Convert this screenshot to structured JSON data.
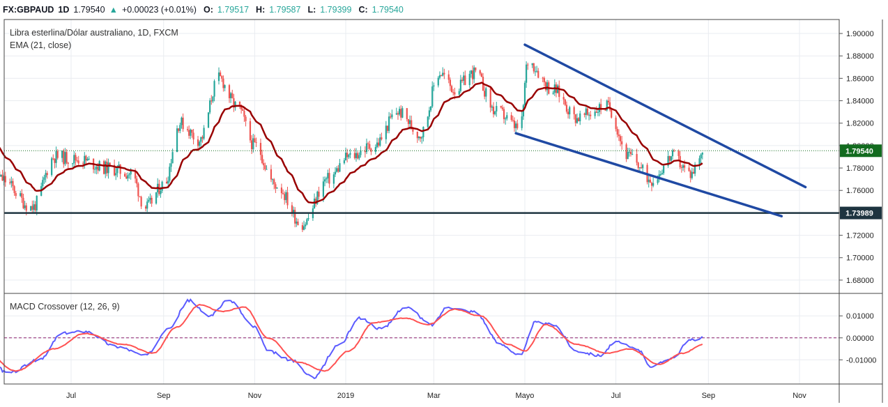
{
  "header": {
    "symbol": "FX:GBPAUD",
    "interval": "1D",
    "last": "1.79540",
    "change": "+0.00023 (+0.01%)",
    "o_label": "O:",
    "o": "1.79517",
    "h_label": "H:",
    "h": "1.79587",
    "l_label": "L:",
    "l": "1.79399",
    "c_label": "C:",
    "c": "1.79540",
    "up_arrow_icon": "triangle-up-icon"
  },
  "colors": {
    "up": "#26a69a",
    "down": "#ef5350",
    "ema": "#990000",
    "trendline": "#1f49a3",
    "support": "#1e3440",
    "macd": "#5b5bff",
    "signal": "#ff5252",
    "last_badge": "#126b1f"
  },
  "chart_data": [
    {
      "type": "candlestick",
      "title": "Libra esterlina/Dólar australiano, 1D, FXCM",
      "indicator_label": "EMA (21, close)",
      "x_tick_labels": [
        "Jul",
        "Sep",
        "Nov",
        "2019",
        "Mar",
        "Mayo",
        "Jul",
        "Sep",
        "Nov"
      ],
      "y_tick_labels": [
        "1.90000",
        "1.88000",
        "1.86000",
        "1.84000",
        "1.82000",
        "1.80000",
        "1.78000",
        "1.76000",
        "1.74000",
        "1.72000",
        "1.70000",
        "1.68000"
      ],
      "ylim": [
        1.67,
        1.905
      ],
      "x_start": "2018-05-01",
      "close_keypoints": [
        [
          "2018-05-01",
          1.81
        ],
        [
          "2018-05-15",
          1.77
        ],
        [
          "2018-06-05",
          1.745
        ],
        [
          "2018-06-20",
          1.79
        ],
        [
          "2018-07-05",
          1.788
        ],
        [
          "2018-07-25",
          1.78
        ],
        [
          "2018-08-10",
          1.775
        ],
        [
          "2018-08-20",
          1.745
        ],
        [
          "2018-09-01",
          1.765
        ],
        [
          "2018-09-12",
          1.82
        ],
        [
          "2018-09-25",
          1.805
        ],
        [
          "2018-10-08",
          1.86
        ],
        [
          "2018-10-20",
          1.835
        ],
        [
          "2018-11-01",
          1.8
        ],
        [
          "2018-11-15",
          1.765
        ],
        [
          "2018-12-03",
          1.73
        ],
        [
          "2018-12-20",
          1.77
        ],
        [
          "2019-01-03",
          1.79
        ],
        [
          "2019-01-20",
          1.8
        ],
        [
          "2019-02-05",
          1.83
        ],
        [
          "2019-02-20",
          1.81
        ],
        [
          "2019-03-05",
          1.865
        ],
        [
          "2019-03-15",
          1.85
        ],
        [
          "2019-03-28",
          1.865
        ],
        [
          "2019-04-12",
          1.83
        ],
        [
          "2019-04-28",
          1.815
        ],
        [
          "2019-05-03",
          1.875
        ],
        [
          "2019-05-20",
          1.85
        ],
        [
          "2019-06-05",
          1.825
        ],
        [
          "2019-06-25",
          1.835
        ],
        [
          "2019-07-10",
          1.79
        ],
        [
          "2019-07-25",
          1.77
        ],
        [
          "2019-08-08",
          1.79
        ],
        [
          "2019-08-20",
          1.775
        ],
        [
          "2019-08-28",
          1.795
        ]
      ],
      "ema_period": 21,
      "last_price": 1.7954,
      "last_price_label": "1.79540",
      "support_level": 1.73989,
      "support_label": "1.73989",
      "trendlines": [
        {
          "name": "upper",
          "from": [
            "2019-05-01",
            1.89
          ],
          "to": [
            "2019-11-05",
            1.763
          ]
        },
        {
          "name": "lower",
          "from": [
            "2019-04-25",
            1.811
          ],
          "to": [
            "2019-10-20",
            1.737
          ]
        }
      ]
    },
    {
      "type": "line",
      "title": "MACD Crossover (12, 26, 9)",
      "y_tick_labels": [
        "0.01000",
        "0.00000",
        "-0.01000"
      ],
      "ylim": [
        -0.021,
        0.018
      ],
      "series": [
        {
          "name": "macd",
          "keypoints": [
            [
              "2018-05-01",
              -0.005
            ],
            [
              "2018-05-20",
              -0.016
            ],
            [
              "2018-06-10",
              -0.01
            ],
            [
              "2018-06-25",
              0.002
            ],
            [
              "2018-07-10",
              0.003
            ],
            [
              "2018-08-01",
              -0.004
            ],
            [
              "2018-08-20",
              -0.008
            ],
            [
              "2018-09-05",
              0.005
            ],
            [
              "2018-09-18",
              0.017
            ],
            [
              "2018-10-01",
              0.01
            ],
            [
              "2018-10-15",
              0.017
            ],
            [
              "2018-11-01",
              0.005
            ],
            [
              "2018-11-10",
              -0.006
            ],
            [
              "2018-11-25",
              -0.01
            ],
            [
              "2018-12-10",
              -0.018
            ],
            [
              "2018-12-28",
              -0.003
            ],
            [
              "2019-01-10",
              0.009
            ],
            [
              "2019-01-25",
              0.004
            ],
            [
              "2019-02-10",
              0.014
            ],
            [
              "2019-02-28",
              0.006
            ],
            [
              "2019-03-10",
              0.014
            ],
            [
              "2019-03-28",
              0.012
            ],
            [
              "2019-04-15",
              -0.003
            ],
            [
              "2019-04-28",
              -0.008
            ],
            [
              "2019-05-08",
              0.007
            ],
            [
              "2019-05-20",
              0.006
            ],
            [
              "2019-06-05",
              -0.006
            ],
            [
              "2019-06-20",
              -0.008
            ],
            [
              "2019-07-01",
              -0.002
            ],
            [
              "2019-07-15",
              -0.005
            ],
            [
              "2019-07-25",
              -0.013
            ],
            [
              "2019-08-08",
              -0.009
            ],
            [
              "2019-08-20",
              -0.001
            ],
            [
              "2019-08-28",
              0.0
            ]
          ]
        },
        {
          "name": "signal",
          "keypoints": [
            [
              "2018-05-01",
              -0.004
            ],
            [
              "2018-05-25",
              -0.015
            ],
            [
              "2018-06-20",
              -0.005
            ],
            [
              "2018-07-10",
              0.002
            ],
            [
              "2018-08-05",
              -0.003
            ],
            [
              "2018-08-25",
              -0.007
            ],
            [
              "2018-09-10",
              0.005
            ],
            [
              "2018-09-25",
              0.015
            ],
            [
              "2018-10-10",
              0.012
            ],
            [
              "2018-10-25",
              0.014
            ],
            [
              "2018-11-10",
              0.0
            ],
            [
              "2018-11-30",
              -0.011
            ],
            [
              "2018-12-18",
              -0.015
            ],
            [
              "2019-01-03",
              -0.006
            ],
            [
              "2019-01-20",
              0.007
            ],
            [
              "2019-02-10",
              0.009
            ],
            [
              "2019-02-25",
              0.006
            ],
            [
              "2019-03-15",
              0.013
            ],
            [
              "2019-04-01",
              0.01
            ],
            [
              "2019-04-20",
              -0.003
            ],
            [
              "2019-05-01",
              -0.006
            ],
            [
              "2019-05-15",
              0.006
            ],
            [
              "2019-06-05",
              -0.003
            ],
            [
              "2019-06-25",
              -0.007
            ],
            [
              "2019-07-10",
              -0.005
            ],
            [
              "2019-07-30",
              -0.012
            ],
            [
              "2019-08-15",
              -0.007
            ],
            [
              "2019-08-28",
              -0.003
            ]
          ]
        }
      ],
      "zero_line": 0.0
    }
  ]
}
